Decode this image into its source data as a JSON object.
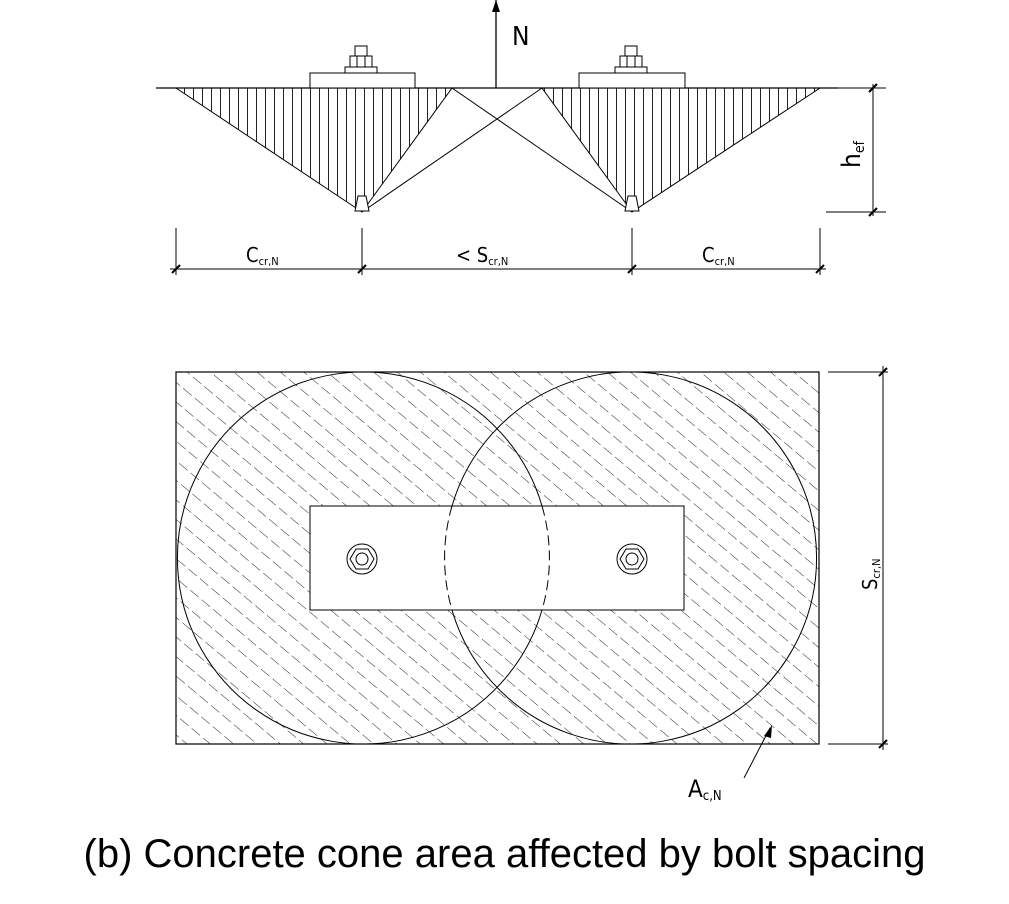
{
  "section_view": {
    "load_label": "N",
    "depth_label": "h",
    "depth_sub": "ef",
    "left_edge_label": "C",
    "left_edge_sub": "cr,N",
    "spacing_prefix": "<",
    "spacing_label": "S",
    "spacing_sub": "cr,N",
    "right_edge_label": "C",
    "right_edge_sub": "cr,N"
  },
  "plan_view": {
    "width_label": "S",
    "width_sub": "cr,N",
    "area_label": "A",
    "area_sub": "c,N"
  },
  "caption": "(b) Concrete cone area affected by bolt spacing"
}
